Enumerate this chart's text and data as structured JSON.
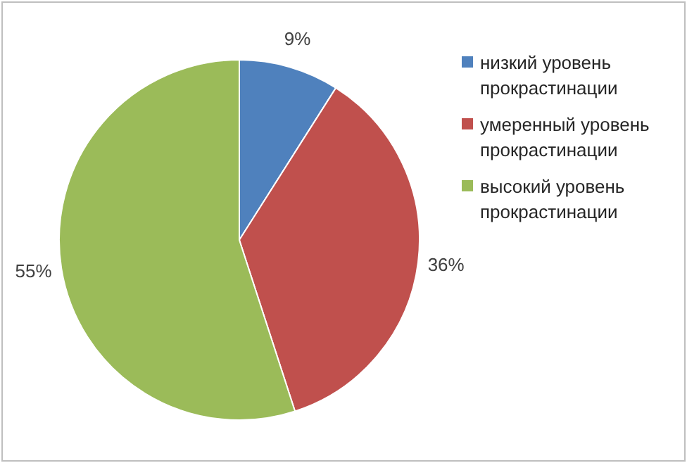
{
  "chart_data": {
    "type": "pie",
    "categories": [
      "низкий уровень прокрастинации",
      "умеренный уровень прокрастинации",
      "высокий уровень прокрастинации"
    ],
    "values": [
      9,
      36,
      55
    ],
    "colors": [
      "#4f81bd",
      "#c0504d",
      "#9bbb59"
    ],
    "value_labels": [
      "9%",
      "36%",
      "55%"
    ],
    "legend": "right"
  }
}
